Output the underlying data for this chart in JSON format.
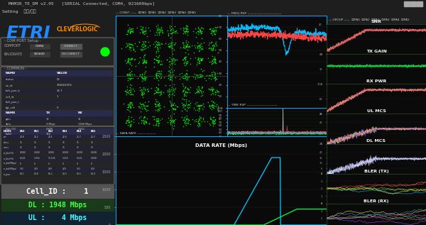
{
  "bg_color": "#1e1e1e",
  "dark_bg": "#111111",
  "panel_bg": "#2a2a2a",
  "left_bg": "#1e1e1e",
  "border_color": "#555555",
  "cyan_border": "#00aaff",
  "title": "MHMIR_TE_DM v2.05   [SERIAL Connected, COM4, 921600bps]",
  "menu": "Setting    시작/종료",
  "etri_color": "#2288ff",
  "clever_color": "#ff8800",
  "green_led": "#00ff00",
  "cell_id_text": "Cell_ID :    1",
  "dl_text": "DL : 1948 Mbps",
  "ul_text": "UL :    4 Mbps",
  "cell_id_bg": "#555555",
  "dl_bg": "#1a3a1a",
  "ul_bg": "#112233",
  "green_text": "#44ff44",
  "cyan_text": "#44ffff",
  "white_text": "#ffffff",
  "label_color": "#cccccc",
  "snr_label": "SNR",
  "txgain_label": "TX GAIN",
  "rxpwr_label": "RX PWR",
  "ulmcs_label": "UL MCS",
  "dlmcs_label": "DL MCS",
  "blertx_label": "BLER (TX)",
  "blerrx_label": "BLER (RX)",
  "table_header_bg": "#2a2a4a",
  "table_row_alt": "#222233",
  "grid_color": "#2a3a2a"
}
